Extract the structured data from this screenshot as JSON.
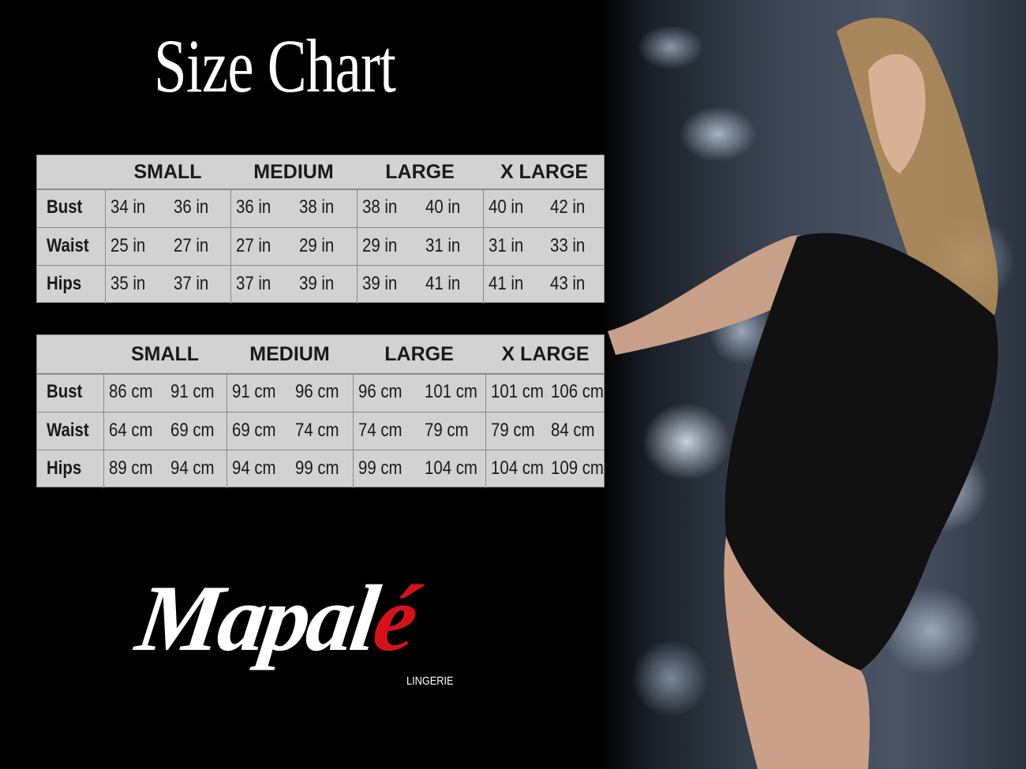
{
  "title": "Size Chart",
  "tables": [
    {
      "unit": "in",
      "headers": [
        "SMALL",
        "MEDIUM",
        "LARGE",
        "X LARGE"
      ],
      "rows": [
        {
          "label": "Bust",
          "values": [
            "34 in",
            "36 in",
            "36 in",
            "38 in",
            "38 in",
            "40 in",
            "40 in",
            "42 in"
          ]
        },
        {
          "label": "Waist",
          "values": [
            "25 in",
            "27 in",
            "27 in",
            "29 in",
            "29 in",
            "31 in",
            "31 in",
            "33 in"
          ]
        },
        {
          "label": "Hips",
          "values": [
            "35 in",
            "37 in",
            "37 in",
            "39 in",
            "39 in",
            "41 in",
            "41 in",
            "43 in"
          ]
        }
      ]
    },
    {
      "unit": "cm",
      "headers": [
        "SMALL",
        "MEDIUM",
        "LARGE",
        "X LARGE"
      ],
      "rows": [
        {
          "label": "Bust",
          "values": [
            "86 cm",
            "91 cm",
            "91 cm",
            "96 cm",
            "96 cm",
            "101 cm",
            "101 cm",
            "106 cm"
          ]
        },
        {
          "label": "Waist",
          "values": [
            "64 cm",
            "69 cm",
            "69 cm",
            "74 cm",
            "74 cm",
            "79  cm",
            "79 cm",
            "84 cm"
          ]
        },
        {
          "label": "Hips",
          "values": [
            "89 cm",
            "94 cm",
            "94 cm",
            "99 cm",
            "99 cm",
            "104 cm",
            "104 cm",
            "109 cm"
          ]
        }
      ]
    }
  ],
  "logo": {
    "brand": "Mapalé",
    "brand_main": "Mapal",
    "brand_accent": "é",
    "tagline": "LINGERIE",
    "accent_color": "#d4121a"
  },
  "photo": {
    "subject": "model in black lace bodysuit against tufted leather backdrop"
  }
}
